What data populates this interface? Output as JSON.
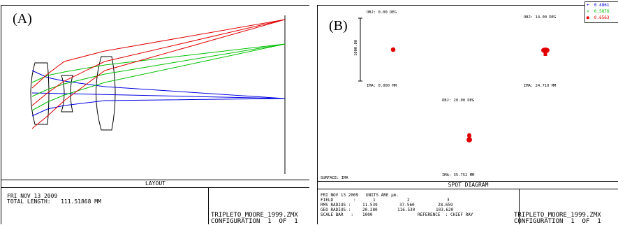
{
  "panel_a": {
    "letter": "(A)",
    "caption": "LAYOUT",
    "info_line1": "FRI NOV 13 2009",
    "info_line2": "TOTAL LENGTH:   111.51868 MM",
    "file_line1": "TRIPLETO_MOORE_1999.ZMX",
    "file_line2": "CONFIGURATION  1  OF  1",
    "ray_colors": {
      "red": "#e00000",
      "green": "#00c000",
      "blue": "#0000e0"
    }
  },
  "panel_b": {
    "letter": "(B)",
    "caption": "SPOT  DIAGRAM",
    "obj1": "OBJ: 0.00 DEG",
    "obj2": "OBJ: 14.00 DEG",
    "obj3": "OBJ: 20.00 DEG",
    "ima1": "IMA: 0.000 MM",
    "ima2": "IMA: 24.710 MM",
    "ima3": "IMA: 35.752 MM",
    "scale_label": "1000.00",
    "surface": "SURFACE: IMA",
    "legend": [
      {
        "sym": "+",
        "value": "0.4861",
        "color": "#0000e0"
      },
      {
        "sym": "×",
        "value": "0.5876",
        "color": "#00c000"
      },
      {
        "sym": "■",
        "value": "0.6563",
        "color": "#e00000"
      }
    ],
    "info": {
      "line1": "FRI NOV 13 2009   UNITS ARE µm.",
      "field_label": "FIELD        :",
      "field_vals": [
        "1",
        "2",
        "3"
      ],
      "rms_label": "RMS RADIUS :",
      "rms_vals": [
        "11.539",
        "37.560",
        "28.659"
      ],
      "geo_label": "GEO RADIUS :",
      "geo_vals": [
        "20.280",
        "116.530",
        "103.620"
      ],
      "scale_label": "SCALE BAR   :",
      "scale_val": "1000",
      "reference": "REFERENCE  : CHIEF RAY"
    },
    "file_line1": "TRIPLETO_MOORE_1999.ZMX",
    "file_line2": "CONFIGURATION  1  OF  1"
  }
}
